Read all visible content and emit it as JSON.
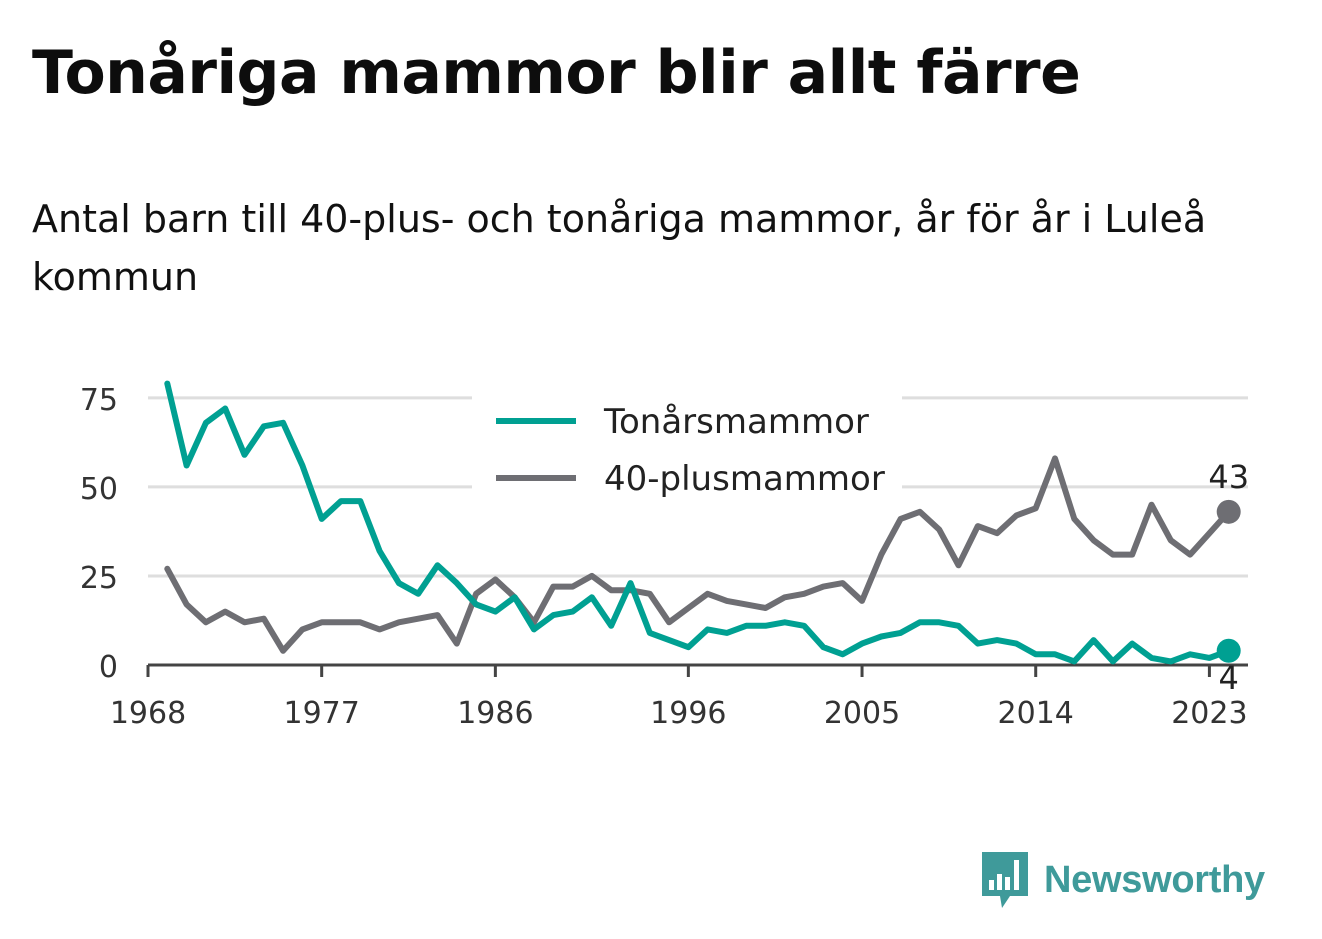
{
  "title": "Tonåriga mammor blir allt färre",
  "subtitle": "Antal barn till 40-plus- och tonåriga mammor, år för år i Luleå kommun",
  "brand": {
    "name": "Newsworthy",
    "color": "#3f9a9a",
    "icon": "bar-chart-badge-icon"
  },
  "chart_data": {
    "type": "line",
    "title": "",
    "xlabel": "",
    "ylabel": "",
    "x": [
      1969,
      1970,
      1971,
      1972,
      1973,
      1974,
      1975,
      1976,
      1977,
      1978,
      1979,
      1980,
      1981,
      1982,
      1983,
      1984,
      1985,
      1986,
      1987,
      1988,
      1989,
      1990,
      1991,
      1992,
      1993,
      1994,
      1995,
      1996,
      1997,
      1998,
      1999,
      2000,
      2001,
      2002,
      2003,
      2004,
      2005,
      2006,
      2007,
      2008,
      2009,
      2010,
      2011,
      2012,
      2013,
      2014,
      2015,
      2016,
      2017,
      2018,
      2019,
      2020,
      2021,
      2022,
      2023,
      2024
    ],
    "series": [
      {
        "name": "Tonårsmammor",
        "color": "#00a092",
        "values": [
          79,
          56,
          68,
          72,
          59,
          67,
          68,
          56,
          41,
          46,
          46,
          32,
          23,
          20,
          28,
          23,
          17,
          15,
          19,
          10,
          14,
          15,
          19,
          11,
          23,
          9,
          7,
          5,
          10,
          9,
          11,
          11,
          12,
          11,
          5,
          3,
          6,
          8,
          9,
          12,
          12,
          11,
          6,
          7,
          6,
          3,
          3,
          1,
          7,
          1,
          6,
          2,
          1,
          3,
          2,
          4
        ]
      },
      {
        "name": "40-plusmammor",
        "color": "#6e6e73",
        "values": [
          27,
          17,
          12,
          15,
          12,
          13,
          4,
          10,
          12,
          12,
          12,
          10,
          12,
          13,
          14,
          6,
          20,
          24,
          19,
          12,
          22,
          22,
          25,
          21,
          21,
          20,
          12,
          16,
          20,
          18,
          17,
          16,
          19,
          20,
          22,
          23,
          18,
          31,
          41,
          43,
          38,
          28,
          39,
          37,
          42,
          44,
          58,
          41,
          35,
          31,
          31,
          45,
          35,
          31,
          37,
          43
        ]
      }
    ],
    "xticks": [
      "1968",
      "1977",
      "1986",
      "1996",
      "2005",
      "2014",
      "2023"
    ],
    "yticks": [
      "0",
      "25",
      "50",
      "75"
    ],
    "ylim": [
      0,
      80
    ],
    "xlim": [
      1968,
      2025
    ],
    "end_labels": {
      "Tonårsmammor": "4",
      "40-plusmammor": "43"
    },
    "legend": "top-center",
    "grid": true
  }
}
